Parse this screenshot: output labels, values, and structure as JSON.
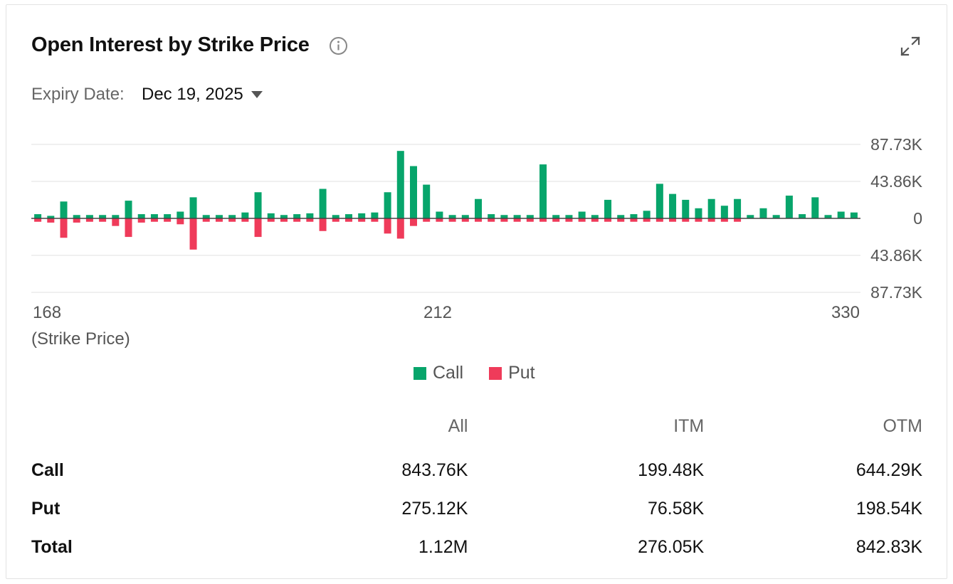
{
  "widget": {
    "title": "Open Interest by Strike Price",
    "info_icon": "info-icon",
    "expand_icon": "expand-icon"
  },
  "expiry": {
    "label": "Expiry Date:",
    "value": "Dec 19, 2025",
    "dropdown_icon": "caret-down-icon"
  },
  "colors": {
    "call": "#07a56b",
    "put": "#ef3b5a",
    "grid": "#ececec",
    "axis": "#444444"
  },
  "chart_data": {
    "type": "bar",
    "xlabel": "(Strike Price)",
    "x_tick_labels": [
      "168",
      "212",
      "330"
    ],
    "y_tick_labels": [
      "87.73K",
      "43.86K",
      "0",
      "43.86K",
      "87.73K"
    ],
    "ylim": [
      -87.73,
      87.73
    ],
    "y_units": "K",
    "legend_position": "bottom-center",
    "series": [
      {
        "name": "Call",
        "values": [
          5,
          3,
          20,
          4,
          4,
          4,
          4,
          21,
          5,
          5,
          5,
          8,
          25,
          4,
          4,
          4,
          7,
          31,
          6,
          4,
          5,
          6,
          35,
          4,
          5,
          6,
          7,
          31,
          80,
          62,
          40,
          8,
          4,
          4,
          23,
          5,
          4,
          4,
          4,
          64,
          4,
          4,
          8,
          4,
          22,
          4,
          5,
          9,
          41,
          29,
          22,
          12,
          23,
          15,
          23,
          4,
          12,
          4,
          27,
          5,
          25,
          4,
          8,
          7
        ]
      },
      {
        "name": "Put",
        "values": [
          4,
          5,
          23,
          5,
          4,
          4,
          9,
          22,
          5,
          4,
          4,
          7,
          37,
          4,
          4,
          4,
          4,
          22,
          4,
          4,
          4,
          4,
          15,
          4,
          4,
          4,
          4,
          18,
          24,
          9,
          4,
          4,
          4,
          4,
          4,
          4,
          4,
          4,
          4,
          4,
          4,
          4,
          4,
          4,
          4,
          4,
          4,
          4,
          4,
          4,
          4,
          4,
          4,
          4,
          4,
          0,
          0,
          0,
          0,
          0,
          0,
          0,
          0,
          0
        ]
      }
    ]
  },
  "legend": {
    "call": "Call",
    "put": "Put"
  },
  "summary": {
    "headers": [
      "",
      "All",
      "ITM",
      "OTM"
    ],
    "rows": [
      {
        "label": "Call",
        "all": "843.76K",
        "itm": "199.48K",
        "otm": "644.29K"
      },
      {
        "label": "Put",
        "all": "275.12K",
        "itm": "76.58K",
        "otm": "198.54K"
      },
      {
        "label": "Total",
        "all": "1.12M",
        "itm": "276.05K",
        "otm": "842.83K"
      }
    ]
  }
}
